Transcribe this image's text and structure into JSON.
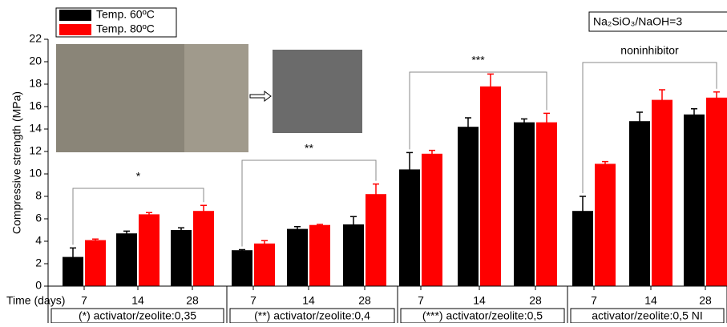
{
  "chart_data": {
    "type": "bar",
    "y_label": "Compressive strength (MPa)",
    "x_label": "Time (days)",
    "categories": [
      "7",
      "14",
      "28",
      "7",
      "14",
      "28",
      "7",
      "14",
      "28",
      "7",
      "14",
      "28"
    ],
    "group_labels": [
      "(*) activator/zeolite:0,35",
      "(**) activator/zeolite:0,4",
      "(***) activator/zeolite:0,5",
      "activator/zeolite:0,5 NI"
    ],
    "annotations": [
      "*",
      "**",
      "***",
      "noninhibitor"
    ],
    "note": "Na₂SiO₃/NaOH=3",
    "series": [
      {
        "name": "Temp. 60ºC",
        "color": "#000000",
        "values": [
          2.6,
          4.7,
          5.0,
          3.2,
          5.1,
          5.5,
          10.4,
          14.2,
          14.6,
          6.7,
          14.7,
          15.3
        ],
        "errors": [
          0.8,
          0.2,
          0.2,
          0.05,
          0.2,
          0.7,
          1.5,
          0.8,
          0.3,
          1.3,
          0.8,
          0.5
        ]
      },
      {
        "name": "Temp. 80ºC",
        "color": "#ff0000",
        "values": [
          4.1,
          6.4,
          6.7,
          3.8,
          5.45,
          8.2,
          11.8,
          17.8,
          14.6,
          10.9,
          16.6,
          16.8
        ],
        "errors": [
          0.1,
          0.15,
          0.5,
          0.25,
          0.05,
          0.9,
          0.3,
          1.1,
          0.8,
          0.2,
          0.9,
          0.5
        ]
      }
    ],
    "ylim": [
      0,
      22
    ],
    "yticks": [
      0,
      2,
      4,
      6,
      8,
      10,
      12,
      14,
      16,
      18,
      20,
      22
    ]
  }
}
